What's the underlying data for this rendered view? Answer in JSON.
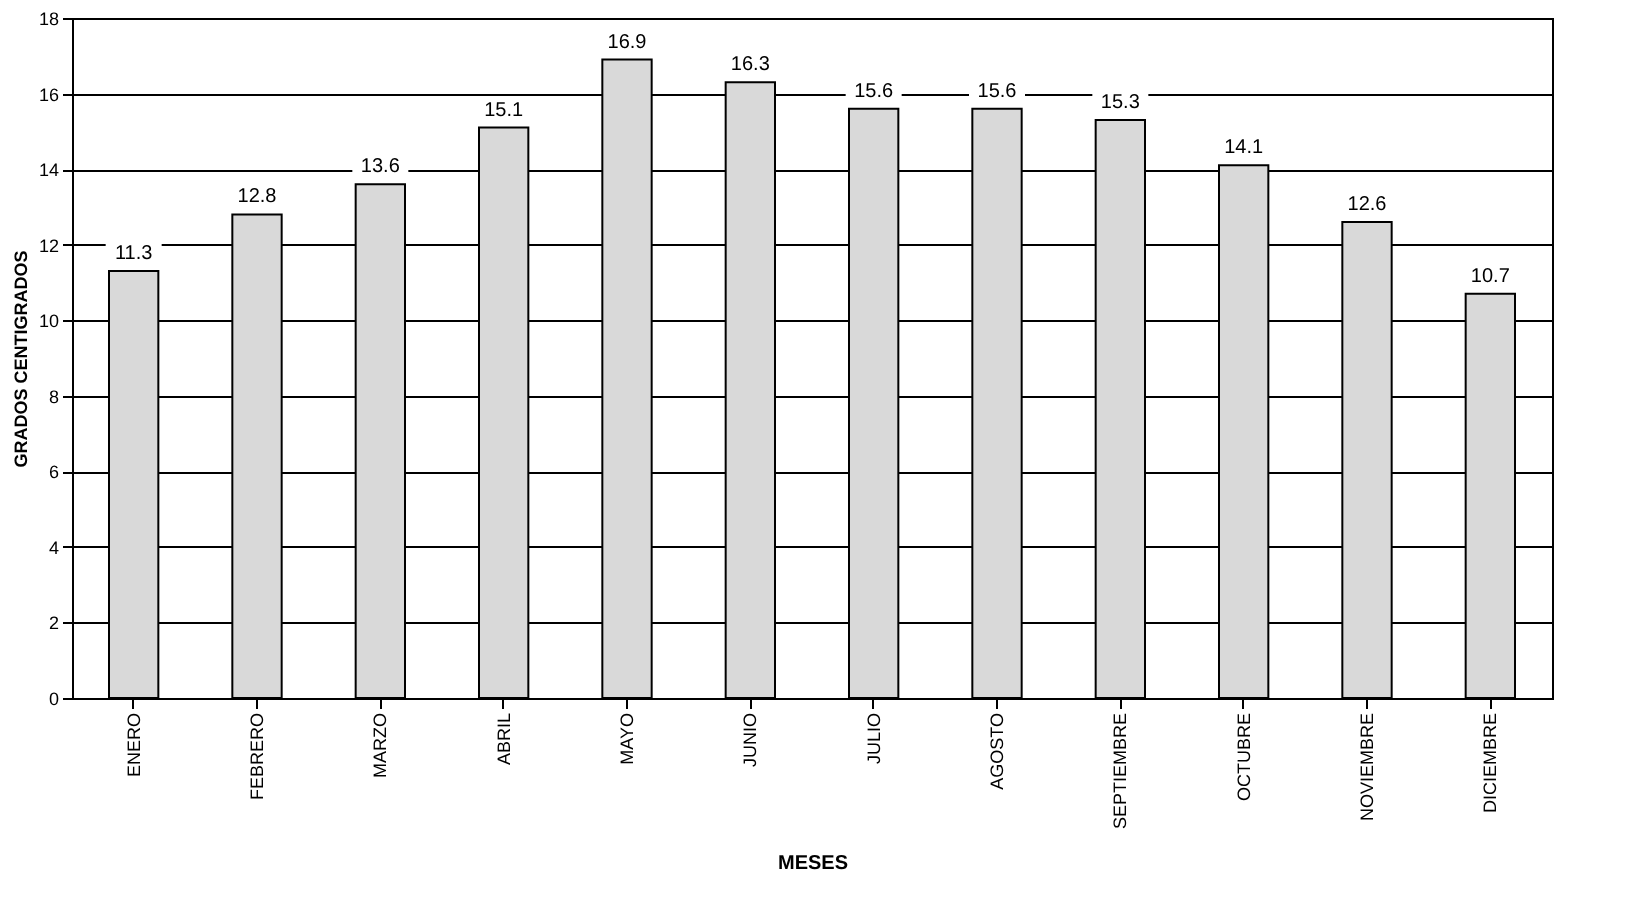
{
  "chart_data": {
    "type": "bar",
    "categories": [
      "ENERO",
      "FEBRERO",
      "MARZO",
      "ABRIL",
      "MAYO",
      "JUNIO",
      "JULIO",
      "AGOSTO",
      "SEPTIEMBRE",
      "OCTUBRE",
      "NOVIEMBRE",
      "DICIEMBRE"
    ],
    "values": [
      11.3,
      12.8,
      13.6,
      15.1,
      16.9,
      16.3,
      15.6,
      15.6,
      15.3,
      14.1,
      12.6,
      10.7
    ],
    "color": "#d9d9d9",
    "xlabel": "MESES",
    "ylabel": "GRADOS CENTIGRADOS",
    "ylim": [
      0,
      18
    ],
    "yticks": [
      0,
      2,
      4,
      6,
      8,
      10,
      12,
      14,
      16,
      18
    ],
    "grid": "y",
    "data_labels": true
  }
}
